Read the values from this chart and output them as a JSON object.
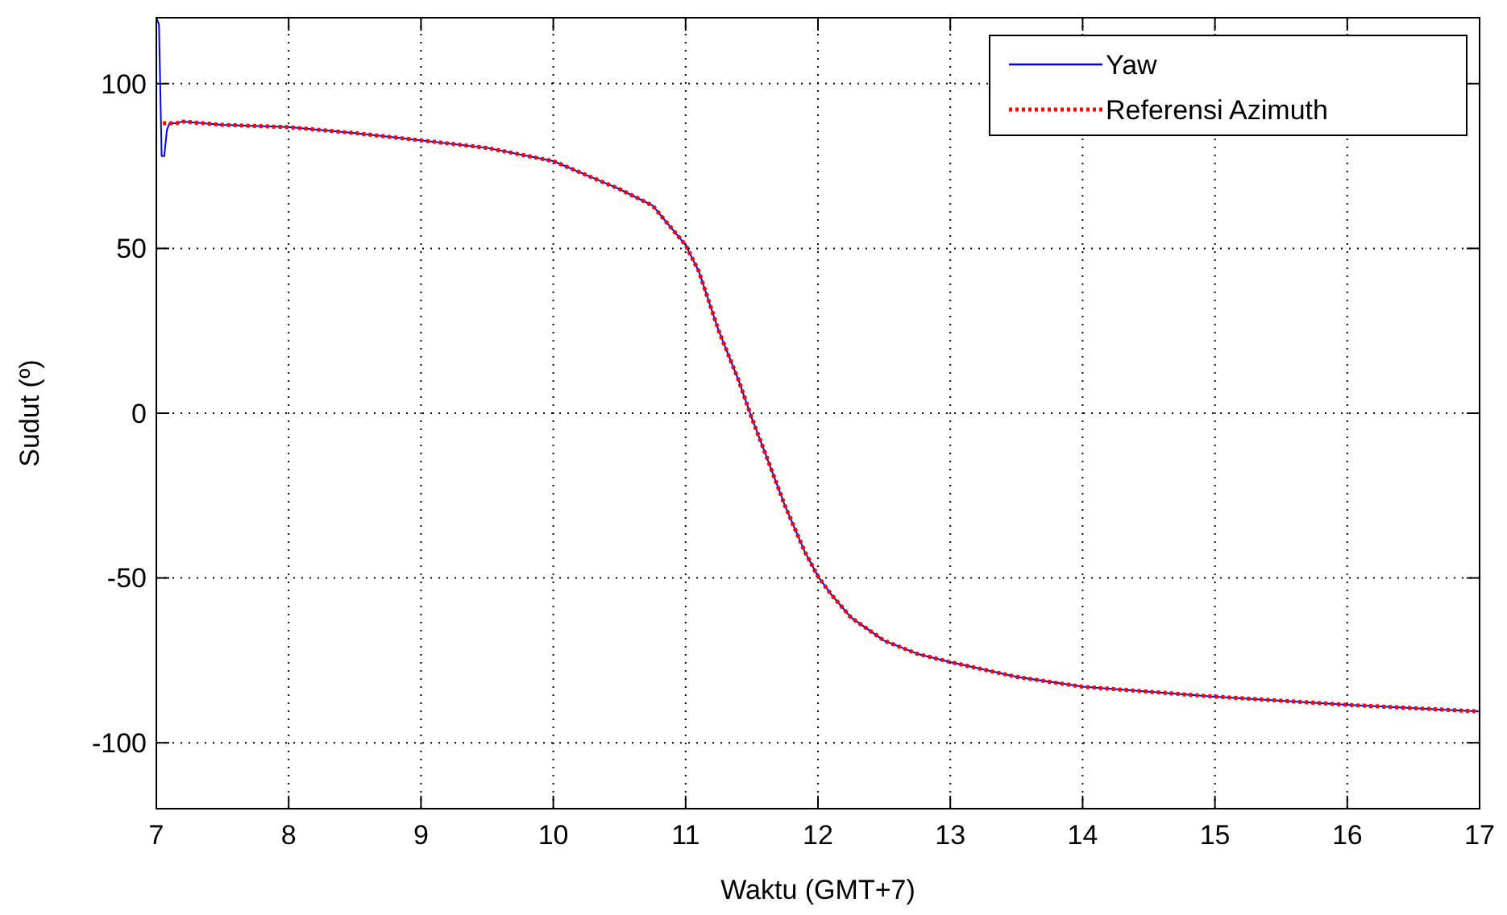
{
  "chart_data": {
    "type": "line",
    "xlabel": "Waktu (GMT+7)",
    "ylabel": "Sudut (º)",
    "xlim": [
      7,
      17
    ],
    "xticks": [
      7,
      8,
      9,
      10,
      11,
      12,
      13,
      14,
      15,
      16,
      17
    ],
    "ylim": [
      -120,
      120
    ],
    "yticks": [
      -100,
      -50,
      0,
      50,
      100
    ],
    "grid": true,
    "legend": "top right",
    "series": [
      {
        "name": "Yaw",
        "color": "#0000ff",
        "line_style": "solid",
        "x": [
          7.0,
          7.02,
          7.04,
          7.06,
          7.08,
          7.1,
          7.15,
          7.2,
          7.5,
          8,
          8.5,
          9,
          9.5,
          10,
          10.5,
          10.75,
          11,
          11.1,
          11.25,
          11.4,
          11.5,
          11.6,
          11.75,
          11.9,
          12,
          12.1,
          12.25,
          12.5,
          12.75,
          13,
          13.5,
          14,
          15,
          16,
          17
        ],
        "values": [
          120,
          118,
          78,
          78,
          86,
          88,
          88,
          88.5,
          87.5,
          86.8,
          85,
          82.8,
          80.5,
          76.5,
          68,
          63,
          51,
          43,
          25,
          10,
          -1.5,
          -12,
          -28,
          -42,
          -49.5,
          -55,
          -62,
          -69,
          -73,
          -75.5,
          -80,
          -83,
          -86,
          -88.5,
          -90.5
        ]
      },
      {
        "name": "Referensi Azimuth",
        "color": "#ff0000",
        "line_style": "dotted",
        "x": [
          7.05,
          7.1,
          7.15,
          7.2,
          7.5,
          8,
          8.5,
          9,
          9.5,
          10,
          10.5,
          10.75,
          11,
          11.1,
          11.25,
          11.4,
          11.5,
          11.6,
          11.75,
          11.9,
          12,
          12.1,
          12.25,
          12.5,
          12.75,
          13,
          13.5,
          14,
          15,
          16,
          17
        ],
        "values": [
          88,
          88,
          88,
          88.5,
          87.5,
          86.8,
          85,
          82.8,
          80.5,
          76.5,
          68,
          63,
          51,
          43,
          25,
          10,
          -1.5,
          -12,
          -28,
          -42,
          -49.5,
          -55,
          -62,
          -69,
          -73,
          -75.5,
          -80,
          -83,
          -86,
          -88.5,
          -90.5
        ]
      }
    ]
  }
}
